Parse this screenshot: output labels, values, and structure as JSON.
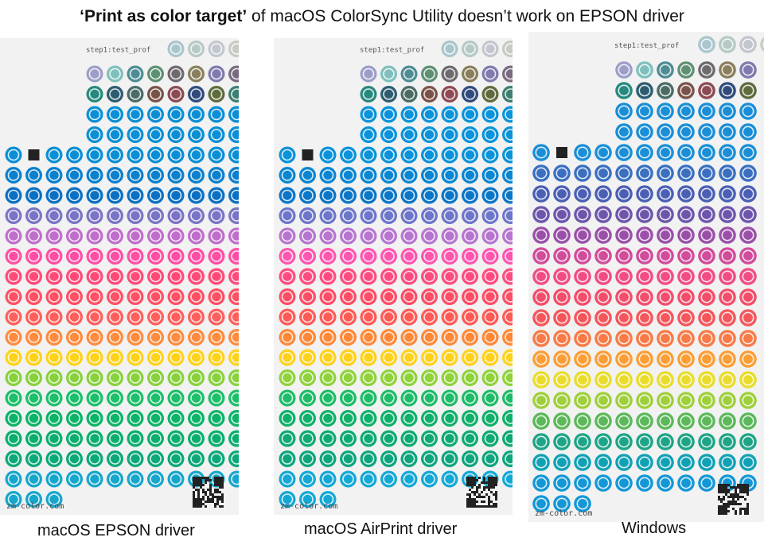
{
  "title": {
    "bold": "‘Print as color target’",
    "rest": " of macOS ColorSync Utility doesn’t work on EPSON driver"
  },
  "panels": [
    {
      "caption": "macOS EPSON driver",
      "header_label": "step1:test_prof",
      "footer_label": "zm-color.com",
      "row_colors": [
        "#0a8fd6",
        "#0b80cd",
        "#0a70c4",
        "#7a74c6",
        "#bf6fcb",
        "#ff4fa4",
        "#ff4a78",
        "#ff5064",
        "#ff5f5c",
        "#ff8b3e",
        "#ffd21a",
        "#88d13c",
        "#1dbf6a",
        "#0cb368",
        "#0bae6e",
        "#0ca879",
        "#17a6cc"
      ]
    },
    {
      "caption": "macOS AirPrint driver",
      "header_label": "step1:test_prof",
      "footer_label": "zm-color.com",
      "row_colors": [
        "#0a93da",
        "#0986d2",
        "#0a76c8",
        "#6d76ca",
        "#b676cf",
        "#ff56b0",
        "#ff4c80",
        "#ff4d66",
        "#ff5a56",
        "#ff8838",
        "#ffd11b",
        "#8fd23a",
        "#1ebc68",
        "#0fb06a",
        "#0daa72",
        "#0ea57d",
        "#14a8d6"
      ]
    },
    {
      "caption": "Windows",
      "header_label": "step1:test_prof",
      "footer_label": "zm-color.com",
      "row_colors": [
        "#1a8ed6",
        "#3b6fc0",
        "#4b5fb4",
        "#6d55ac",
        "#9a50a8",
        "#d14c9a",
        "#f14c83",
        "#f24e6b",
        "#f4565c",
        "#f77a47",
        "#fb9e36",
        "#e9dc2b",
        "#9fcf3b",
        "#5cb85a",
        "#1ea487",
        "#11a1b4",
        "#1497d6"
      ]
    }
  ]
}
